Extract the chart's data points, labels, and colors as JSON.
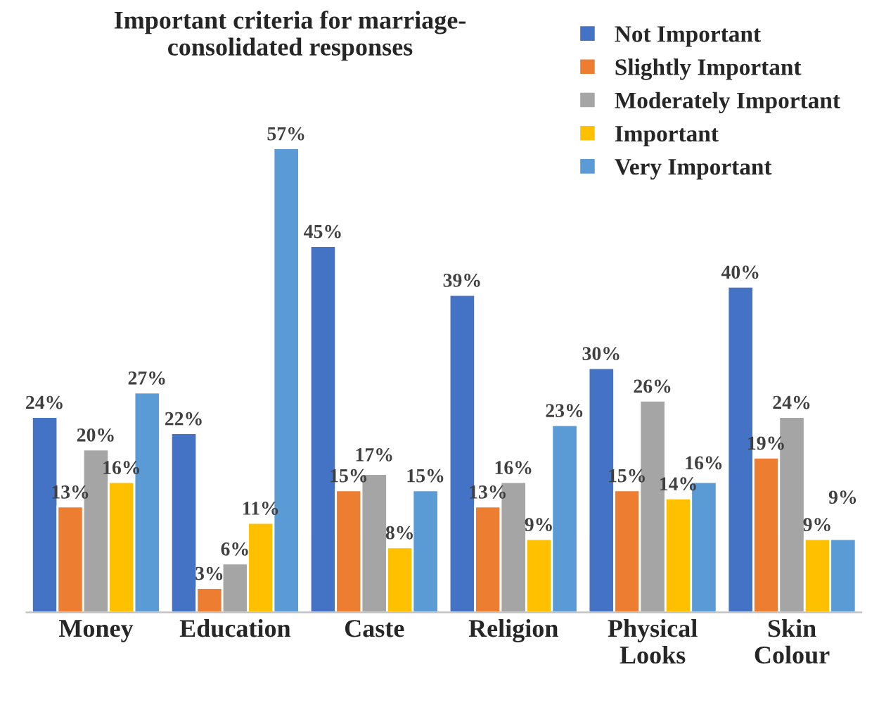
{
  "chart_data": {
    "type": "bar",
    "title": "Important criteria for marriage-\nconsolidated responses",
    "categories": [
      "Money",
      "Education",
      "Caste",
      "Religion",
      "Physical\nLooks",
      "Skin\nColour"
    ],
    "legend": "top right",
    "grid": false,
    "series": [
      {
        "name": "Not Important",
        "color": "#4472c4",
        "values": [
          24,
          22,
          45,
          39,
          30,
          40
        ],
        "value_labels": [
          "24%",
          "22%",
          "45%",
          "39%",
          "30%",
          "40%"
        ]
      },
      {
        "name": "Slightly Important",
        "color": "#ed7d31",
        "values": [
          13,
          3,
          15,
          13,
          15,
          19
        ],
        "value_labels": [
          "13%",
          "3%",
          "15%",
          "13%",
          "15%",
          "19%"
        ]
      },
      {
        "name": "Moderately Important",
        "color": "#a5a5a5",
        "values": [
          20,
          6,
          17,
          16,
          26,
          24
        ],
        "value_labels": [
          "20%",
          "6%",
          "17%",
          "16%",
          "26%",
          "24%"
        ]
      },
      {
        "name": "Important",
        "color": "#ffc000",
        "values": [
          16,
          11,
          8,
          9,
          14,
          9
        ],
        "value_labels": [
          "16%",
          "11%",
          "8%",
          "9%",
          "14%",
          "9%"
        ]
      },
      {
        "name": "Very Important",
        "color": "#5b9bd5",
        "values": [
          27,
          57,
          15,
          23,
          16,
          9
        ],
        "value_labels": [
          "27%",
          "57%",
          "15%",
          "23%",
          "16%",
          "9%"
        ]
      }
    ]
  }
}
